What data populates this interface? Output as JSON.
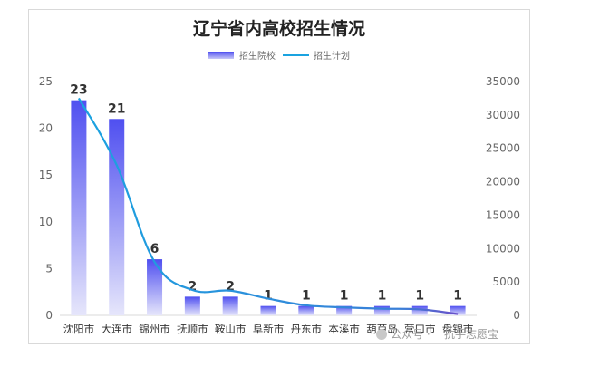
{
  "chart_data": {
    "type": "bar",
    "title": "辽宁省内高校招生情况",
    "categories": [
      "沈阳市",
      "大连市",
      "锦州市",
      "抚顺市",
      "鞍山市",
      "阜新市",
      "丹东市",
      "本溪市",
      "葫芦岛",
      "营口市",
      "盘锦市"
    ],
    "series": [
      {
        "name": "招生院校",
        "type": "bar",
        "axis": "left",
        "values": [
          23,
          21,
          6,
          2,
          2,
          1,
          1,
          1,
          1,
          1,
          1
        ]
      },
      {
        "name": "招生计划",
        "type": "line",
        "axis": "right",
        "values": [
          32500,
          22500,
          8000,
          3800,
          3700,
          2500,
          1500,
          1200,
          1000,
          900,
          200
        ]
      }
    ],
    "y_left": {
      "min": 0,
      "max": 25,
      "ticks": [
        0,
        5,
        10,
        15,
        20,
        25
      ]
    },
    "y_right": {
      "min": 0,
      "max": 35000,
      "ticks": [
        0,
        5000,
        10000,
        15000,
        20000,
        25000,
        30000,
        35000
      ]
    },
    "legend": "top-center",
    "grid": false,
    "colors": {
      "bar_top": "#4f4ff0",
      "bar_bottom": "#e6e6fb",
      "line": "#1aa3e0",
      "line_end": "#6a4fc8"
    }
  },
  "watermark": {
    "prefix": "公众号 · ",
    "name": "抗手志愿宝"
  }
}
